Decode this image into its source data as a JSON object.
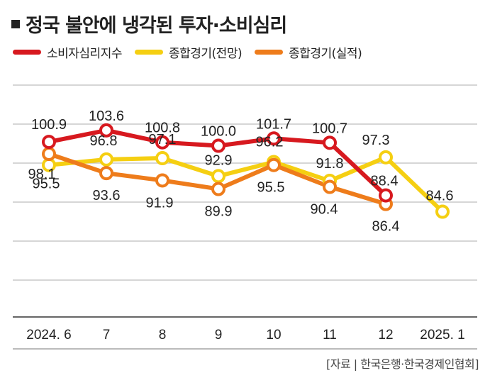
{
  "title": "정국 불안에 냉각된 투자·소비심리",
  "source": "[자료 | 한국은행·한국경제인협회]",
  "chart_data": {
    "type": "line",
    "title": "정국 불안에 냉각된 투자·소비심리",
    "categories": [
      "2024. 6",
      "7",
      "8",
      "9",
      "10",
      "11",
      "12",
      "2025. 1"
    ],
    "legend_position": "top-left",
    "grid": true,
    "ylim": [
      60,
      115
    ],
    "series": [
      {
        "name": "소비자심리지수",
        "color": "#d7191f",
        "values": [
          100.9,
          103.6,
          100.8,
          100.0,
          101.7,
          100.7,
          88.4,
          null
        ],
        "labels": [
          "100.9",
          "103.6",
          "100.8",
          "100.0",
          "101.7",
          "100.7",
          "88.4",
          null
        ]
      },
      {
        "name": "종합경기(전망)",
        "color": "#f5cf12",
        "values": [
          95.5,
          96.8,
          97.1,
          92.9,
          96.2,
          91.8,
          97.3,
          84.6
        ],
        "labels": [
          "95.5",
          "96.8",
          "97.1",
          "92.9",
          "96.2",
          "91.8",
          "97.3",
          "84.6"
        ]
      },
      {
        "name": "종합경기(실적)",
        "color": "#ee7c1b",
        "values": [
          98.1,
          93.6,
          91.9,
          89.9,
          95.5,
          90.4,
          86.4,
          null
        ],
        "labels": [
          "98.1",
          "93.6",
          "91.9",
          "89.9",
          "95.5",
          "90.4",
          "86.4",
          null
        ]
      }
    ]
  }
}
